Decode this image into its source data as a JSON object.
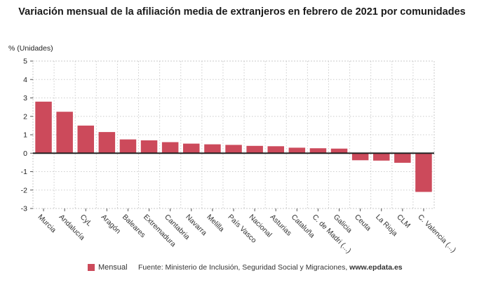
{
  "chart_data": {
    "type": "bar",
    "title": "Variación mensual de la afiliación media de extranjeros en febrero de 2021 por comunidades",
    "ylabel": "% (Unidades)",
    "xlabel": "",
    "categories": [
      "Murcia",
      "Andalucía",
      "CyL",
      "Aragón",
      "Baleares",
      "Extremadura",
      "Cantabria",
      "Navarra",
      "Melilla",
      "País Vasco",
      "Nacional",
      "Asturias",
      "Cataluña",
      "C. de Madri (...)",
      "Galicia",
      "Ceuta",
      "La Rioja",
      "CLM",
      "C. Valencia (...)"
    ],
    "series": [
      {
        "name": "Mensual",
        "values": [
          2.8,
          2.25,
          1.5,
          1.15,
          0.75,
          0.7,
          0.6,
          0.52,
          0.48,
          0.45,
          0.4,
          0.38,
          0.3,
          0.27,
          0.25,
          -0.38,
          -0.4,
          -0.52,
          -2.1
        ]
      }
    ],
    "ylim": [
      -3,
      5
    ],
    "ytick_step": 1,
    "yticks": [
      5,
      4,
      3,
      2,
      1,
      0,
      -1,
      -2,
      -3
    ],
    "grid": true,
    "legend_position": "bottom"
  },
  "legend": {
    "label": "Mensual",
    "swatch_color": "#cc4a5b"
  },
  "source": {
    "prefix": "Fuente: Ministerio de Inclusión, Seguridad Social y Migraciones, ",
    "link": "www.epdata.es"
  },
  "colors": {
    "bar": "#cc4a5b",
    "zero_line": "#222222",
    "grid": "#cccccc",
    "border": "#c9c9c9",
    "tick": "#555555",
    "axis_text": "#222222",
    "category_text": "#333333",
    "title_text": "#1a1a1a"
  }
}
